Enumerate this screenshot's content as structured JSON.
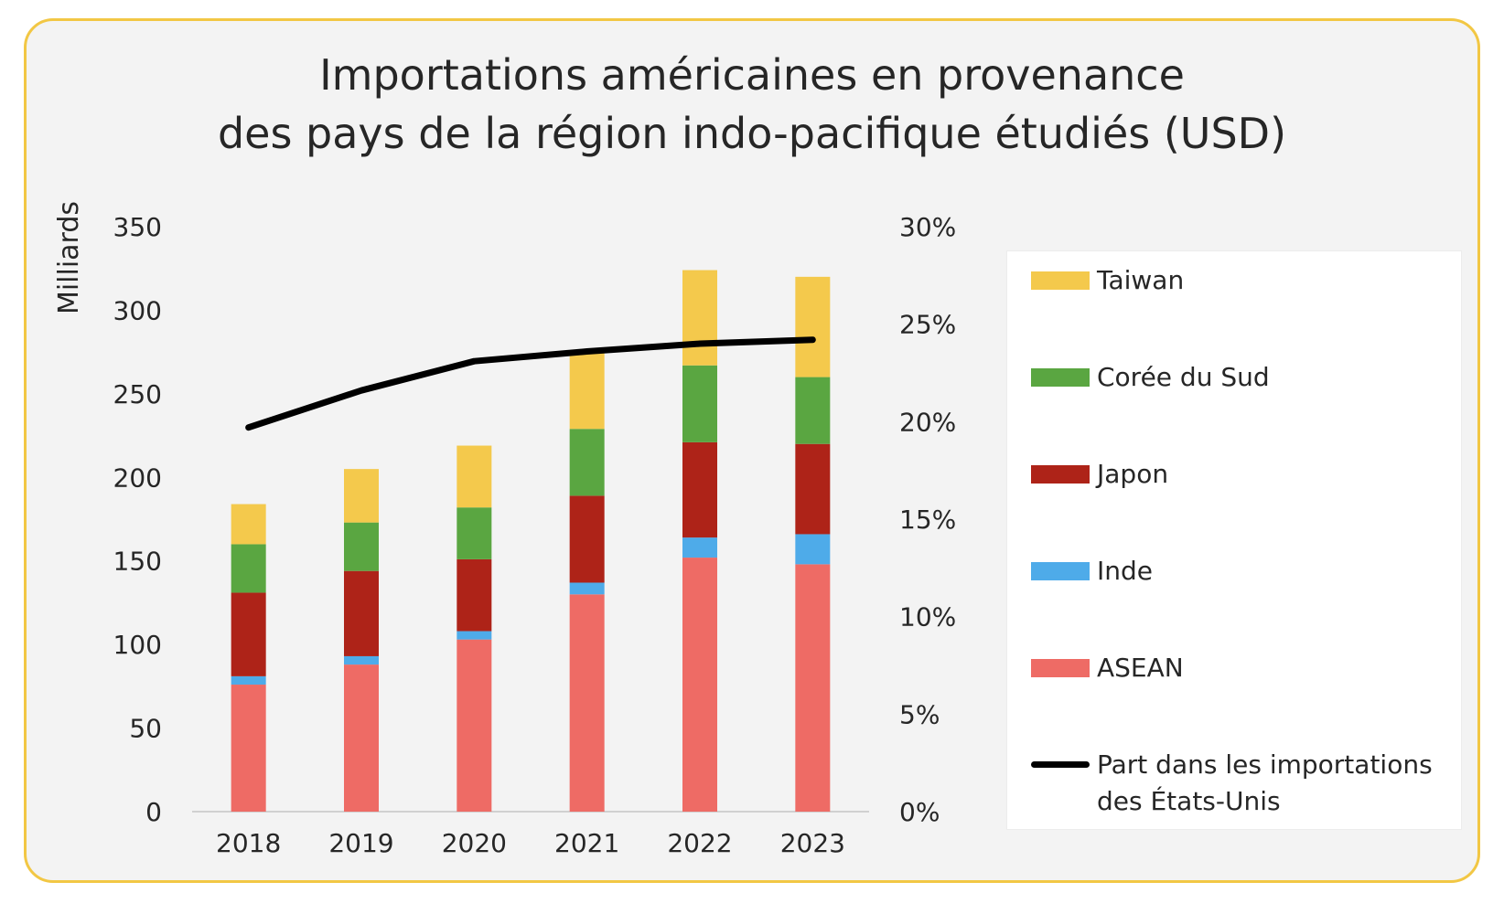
{
  "chart_data": {
    "type": "bar",
    "title": [
      "Importations américaines en provenance",
      "des pays de la région indo-pacifique étudiés (USD)"
    ],
    "ylabel": "Milliards",
    "ylim": [
      0,
      350
    ],
    "y_ticks": [
      "0",
      "50",
      "100",
      "150",
      "200",
      "250",
      "300",
      "350"
    ],
    "y2lim": [
      0,
      0.3
    ],
    "y2_ticks": [
      "0%",
      "5%",
      "10%",
      "15%",
      "20%",
      "25%",
      "30%"
    ],
    "categories": [
      "2018",
      "2019",
      "2020",
      "2021",
      "2022",
      "2023"
    ],
    "stacked": true,
    "series": [
      {
        "name": "ASEAN",
        "color": "#ee6b65",
        "values": [
          76,
          88,
          103,
          130,
          152,
          148
        ]
      },
      {
        "name": "Inde",
        "color": "#4eabe9",
        "values": [
          5,
          5,
          5,
          7,
          12,
          18
        ]
      },
      {
        "name": "Japon",
        "color": "#ae2318",
        "values": [
          50,
          51,
          43,
          52,
          57,
          54
        ]
      },
      {
        "name": "Corée du Sud",
        "color": "#5aa641",
        "values": [
          29,
          29,
          31,
          40,
          46,
          40
        ]
      },
      {
        "name": "Taiwan",
        "color": "#f4c94c",
        "values": [
          24,
          32,
          37,
          46,
          57,
          60
        ]
      }
    ],
    "line_series": {
      "name": "Part dans les importations des États-Unis",
      "color": "#000000",
      "axis": "right",
      "values": [
        0.197,
        0.216,
        0.231,
        0.236,
        0.24,
        0.242
      ]
    },
    "legend_placement": "right",
    "grid": false
  },
  "legend": [
    {
      "label": "Taiwan",
      "color": "#f4c94c",
      "kind": "box"
    },
    {
      "label": "Corée du Sud",
      "color": "#5aa641",
      "kind": "box"
    },
    {
      "label": "Japon",
      "color": "#ae2318",
      "kind": "box"
    },
    {
      "label": "Inde",
      "color": "#4eabe9",
      "kind": "box"
    },
    {
      "label": "ASEAN",
      "color": "#ee6b65",
      "kind": "box"
    },
    {
      "label_lines": [
        "Part dans les importations",
        "des États-Unis"
      ],
      "color": "#000000",
      "kind": "line"
    }
  ]
}
